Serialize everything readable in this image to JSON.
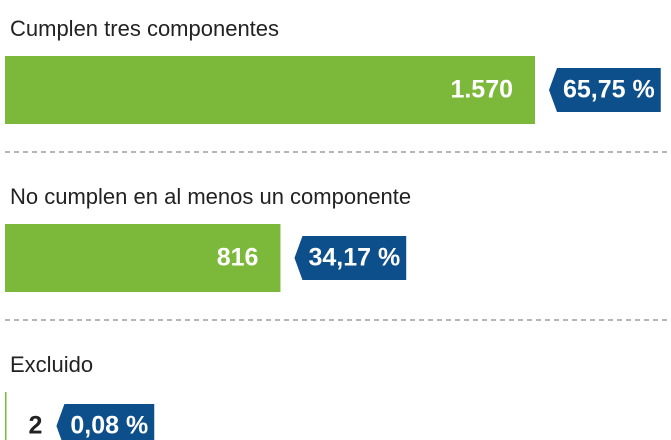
{
  "chart_data": {
    "type": "bar",
    "orientation": "horizontal",
    "color": "#7cb83a",
    "badge_color": "#0d4f8b",
    "categories": [
      "Cumplen tres componentes",
      "No cumplen en al menos un componente",
      "Excluido"
    ],
    "values": [
      1570,
      816,
      2
    ],
    "value_labels": [
      "1.570",
      "816",
      "2"
    ],
    "percentages": [
      65.75,
      34.17,
      0.08
    ],
    "percentage_labels": [
      "65,75 %",
      "34,17 %",
      "0,08 %"
    ]
  }
}
